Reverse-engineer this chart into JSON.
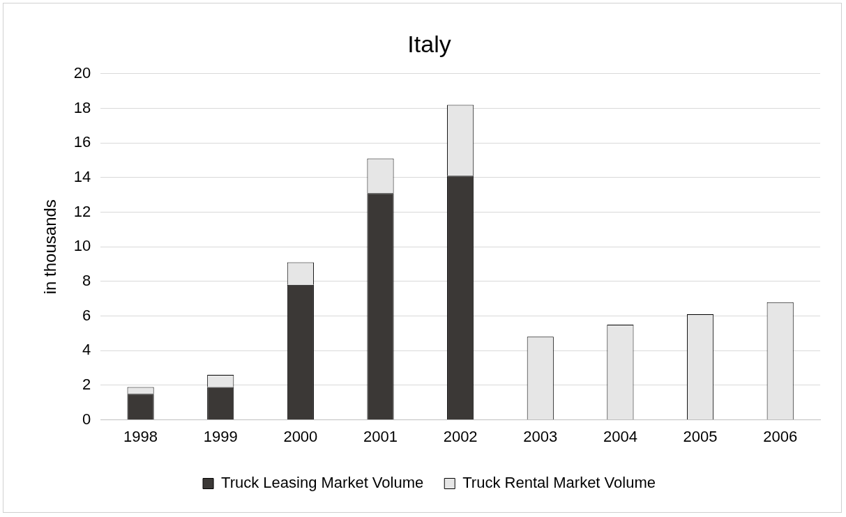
{
  "chart_data": {
    "type": "bar",
    "title": "Italy",
    "ylabel": "in thousands",
    "categories": [
      "1998",
      "1999",
      "2000",
      "2001",
      "2002",
      "2003",
      "2004",
      "2005",
      "2006"
    ],
    "series": [
      {
        "name": "Truck Leasing Market Volume",
        "color": "#3b3836",
        "values": [
          1.5,
          1.9,
          7.8,
          13.1,
          14.1,
          null,
          null,
          null,
          null
        ]
      },
      {
        "name": "Truck Rental Market Volume",
        "color": "#e6e6e6",
        "values": [
          0.4,
          0.7,
          1.3,
          2.0,
          4.1,
          4.8,
          5.5,
          6.1,
          6.8
        ]
      }
    ],
    "stacked": true,
    "ylim": [
      0,
      20
    ],
    "yticks": [
      0,
      2,
      4,
      6,
      8,
      10,
      12,
      14,
      16,
      18,
      20
    ],
    "grid": "y",
    "legend": "bottom"
  }
}
